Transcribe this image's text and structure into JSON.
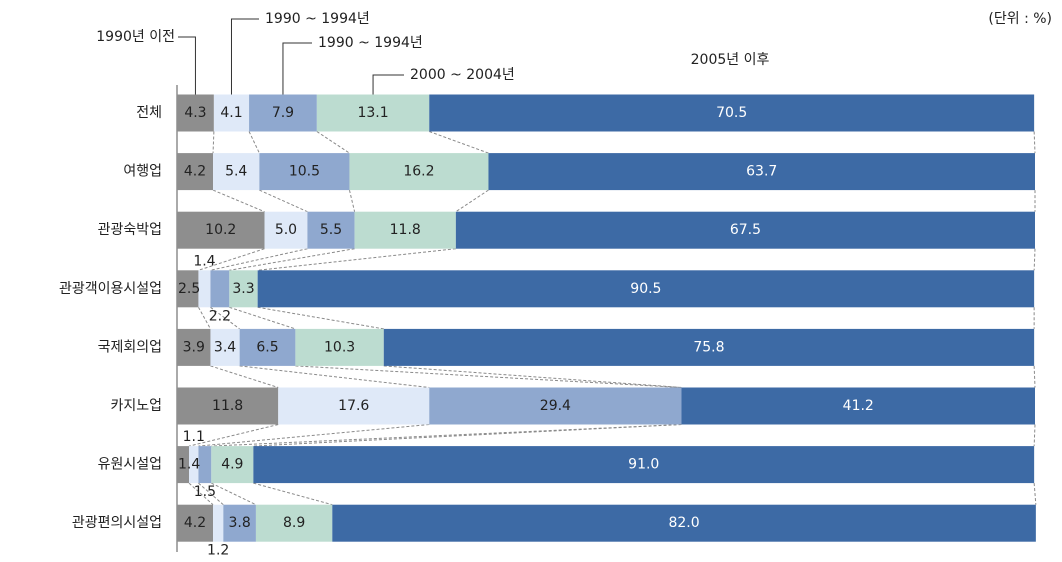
{
  "chart_data": {
    "type": "stacked_bar_horizontal",
    "unit_note": "(단위 : %)",
    "categories": [
      "전체",
      "여행업",
      "관광숙박업",
      "관광객이용시설업",
      "국제회의업",
      "카지노업",
      "유원시설업",
      "관광편의시설업"
    ],
    "xlim": [
      0,
      100
    ],
    "series": [
      {
        "name": "1990년 이전",
        "color": "#8e8e8e",
        "values": [
          4.3,
          4.2,
          10.2,
          2.5,
          3.9,
          11.8,
          1.4,
          4.2
        ],
        "value_labels": [
          "4.3",
          "4.2",
          "10.2",
          "2.5",
          "3.9",
          "11.8",
          "1.4",
          "4.2"
        ]
      },
      {
        "name": "1990 ~ 1994년",
        "color": "#dfe9f8",
        "values": [
          4.1,
          5.4,
          5.0,
          1.4,
          3.4,
          17.6,
          1.1,
          1.2
        ],
        "value_labels": [
          "4.1",
          "5.4",
          "5.0",
          "1.4",
          "3.4",
          "17.6",
          "1.1",
          "1.2"
        ]
      },
      {
        "name": "1990 ~ 1994년",
        "color": "#8fa8cf",
        "values": [
          7.9,
          10.5,
          5.5,
          2.2,
          6.5,
          29.4,
          1.5,
          3.8
        ],
        "value_labels": [
          "7.9",
          "10.5",
          "5.5",
          "2.2",
          "6.5",
          "29.4",
          "1.5",
          "3.8"
        ]
      },
      {
        "name": "2000 ~ 2004년",
        "color": "#bcdcd0",
        "values": [
          13.1,
          16.2,
          11.8,
          3.3,
          10.3,
          null,
          4.9,
          8.9
        ],
        "value_labels": [
          "13.1",
          "16.2",
          "11.8",
          "3.3",
          "10.3",
          null,
          "4.9",
          "8.9"
        ]
      },
      {
        "name": "2005년 이후",
        "color": "#3d6aa5",
        "values": [
          70.5,
          63.7,
          67.5,
          90.5,
          75.8,
          41.2,
          91.0,
          82.0
        ],
        "value_labels": [
          "70.5",
          "63.7",
          "67.5",
          "90.5",
          "75.8",
          "41.2",
          "91.0",
          "82.0"
        ]
      }
    ]
  }
}
